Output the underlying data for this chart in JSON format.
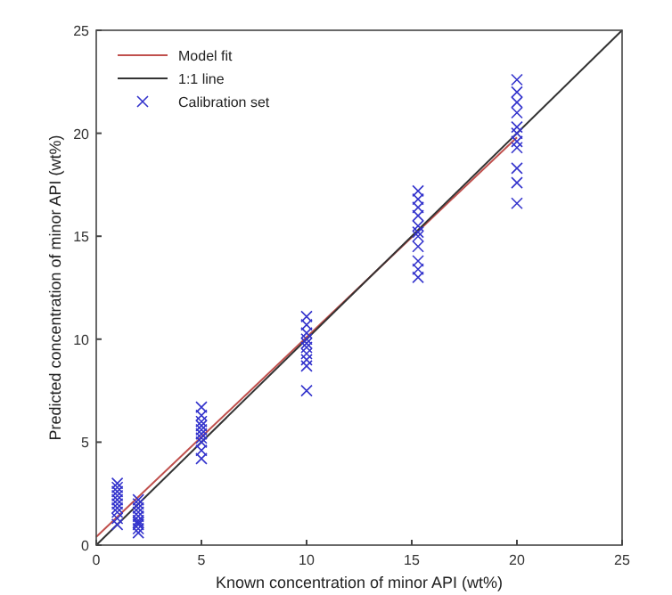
{
  "chart_data": {
    "type": "scatter",
    "xlabel": "Known concentration of minor API (wt%)",
    "ylabel": "Predicted concentration of minor API (wt%)",
    "xlim": [
      0,
      25
    ],
    "ylim": [
      0,
      25
    ],
    "xticks": [
      0,
      5,
      10,
      15,
      20,
      25
    ],
    "yticks": [
      0,
      5,
      10,
      15,
      20,
      25
    ],
    "legend": "top left",
    "grid": false,
    "series": [
      {
        "name": "Model fit",
        "type": "line",
        "color": "#c0504d",
        "x": [
          0,
          20
        ],
        "values": [
          0.4,
          19.8
        ],
        "marker": "none"
      },
      {
        "name": "1:1 line",
        "type": "line",
        "color": "#333333",
        "x": [
          0,
          25
        ],
        "values": [
          0,
          25
        ],
        "marker": "none"
      },
      {
        "name": "Calibration set",
        "color": "#3333cc",
        "marker": "cross",
        "x": [
          1,
          1,
          1,
          1,
          1,
          1,
          1,
          1,
          1,
          1,
          2,
          2,
          2,
          2,
          2,
          2,
          2,
          2,
          2,
          2,
          5,
          5,
          5,
          5,
          5,
          5,
          5,
          5,
          5,
          5,
          10,
          10,
          10,
          10,
          10,
          10,
          10,
          10,
          10,
          10,
          15.3,
          15.3,
          15.3,
          15.3,
          15.3,
          15.3,
          15.3,
          15.3,
          15.3,
          15.3,
          15.3,
          20,
          20,
          20,
          20,
          20,
          20,
          20,
          20,
          20,
          20,
          20
        ],
        "values": [
          1.0,
          1.3,
          1.6,
          1.8,
          2.0,
          2.2,
          2.4,
          2.6,
          2.8,
          3.0,
          0.6,
          0.8,
          1.0,
          1.2,
          1.4,
          1.6,
          1.8,
          2.0,
          2.2,
          1.1,
          4.2,
          4.6,
          5.0,
          5.2,
          5.4,
          5.6,
          5.8,
          6.0,
          6.3,
          6.7,
          7.5,
          8.7,
          9.0,
          9.3,
          9.6,
          9.8,
          10.0,
          10.3,
          10.7,
          11.1,
          13.0,
          13.4,
          13.8,
          14.5,
          15.0,
          15.2,
          15.5,
          16.0,
          16.4,
          16.8,
          17.2,
          16.6,
          17.6,
          18.3,
          19.3,
          19.6,
          20.0,
          20.3,
          21.0,
          21.5,
          22.0,
          22.6
        ]
      }
    ]
  }
}
